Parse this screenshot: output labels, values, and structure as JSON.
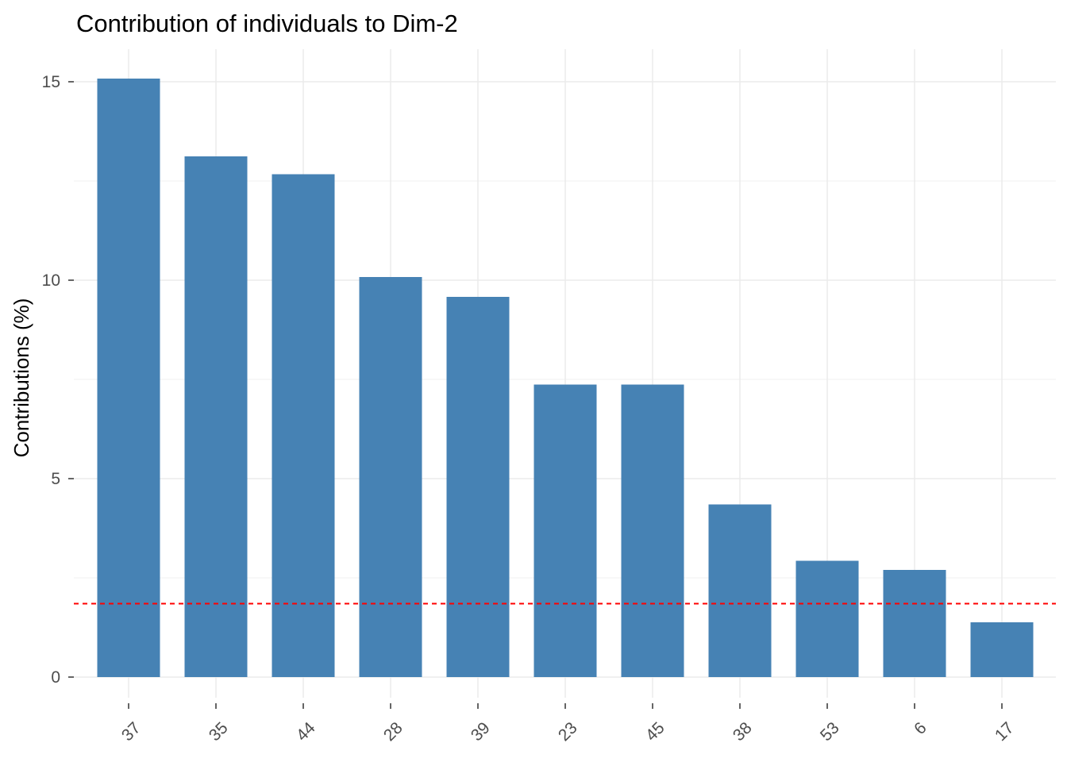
{
  "chart_data": {
    "type": "bar",
    "title": "Contribution of individuals to Dim-2",
    "xlabel": "",
    "ylabel": "Contributions (%)",
    "categories": [
      "37",
      "35",
      "44",
      "28",
      "39",
      "23",
      "45",
      "38",
      "53",
      "6",
      "17"
    ],
    "values": [
      15.08,
      13.12,
      12.67,
      10.08,
      9.58,
      7.37,
      7.37,
      4.35,
      2.93,
      2.7,
      1.38
    ],
    "yticks": [
      0,
      5,
      10,
      15
    ],
    "ylim": [
      -0.76,
      15.84
    ],
    "reference_line": {
      "value": 1.85,
      "style": "dashed",
      "color": "#ff0000"
    },
    "bar_color": "#4682b4",
    "grid": true,
    "legend": "none"
  }
}
